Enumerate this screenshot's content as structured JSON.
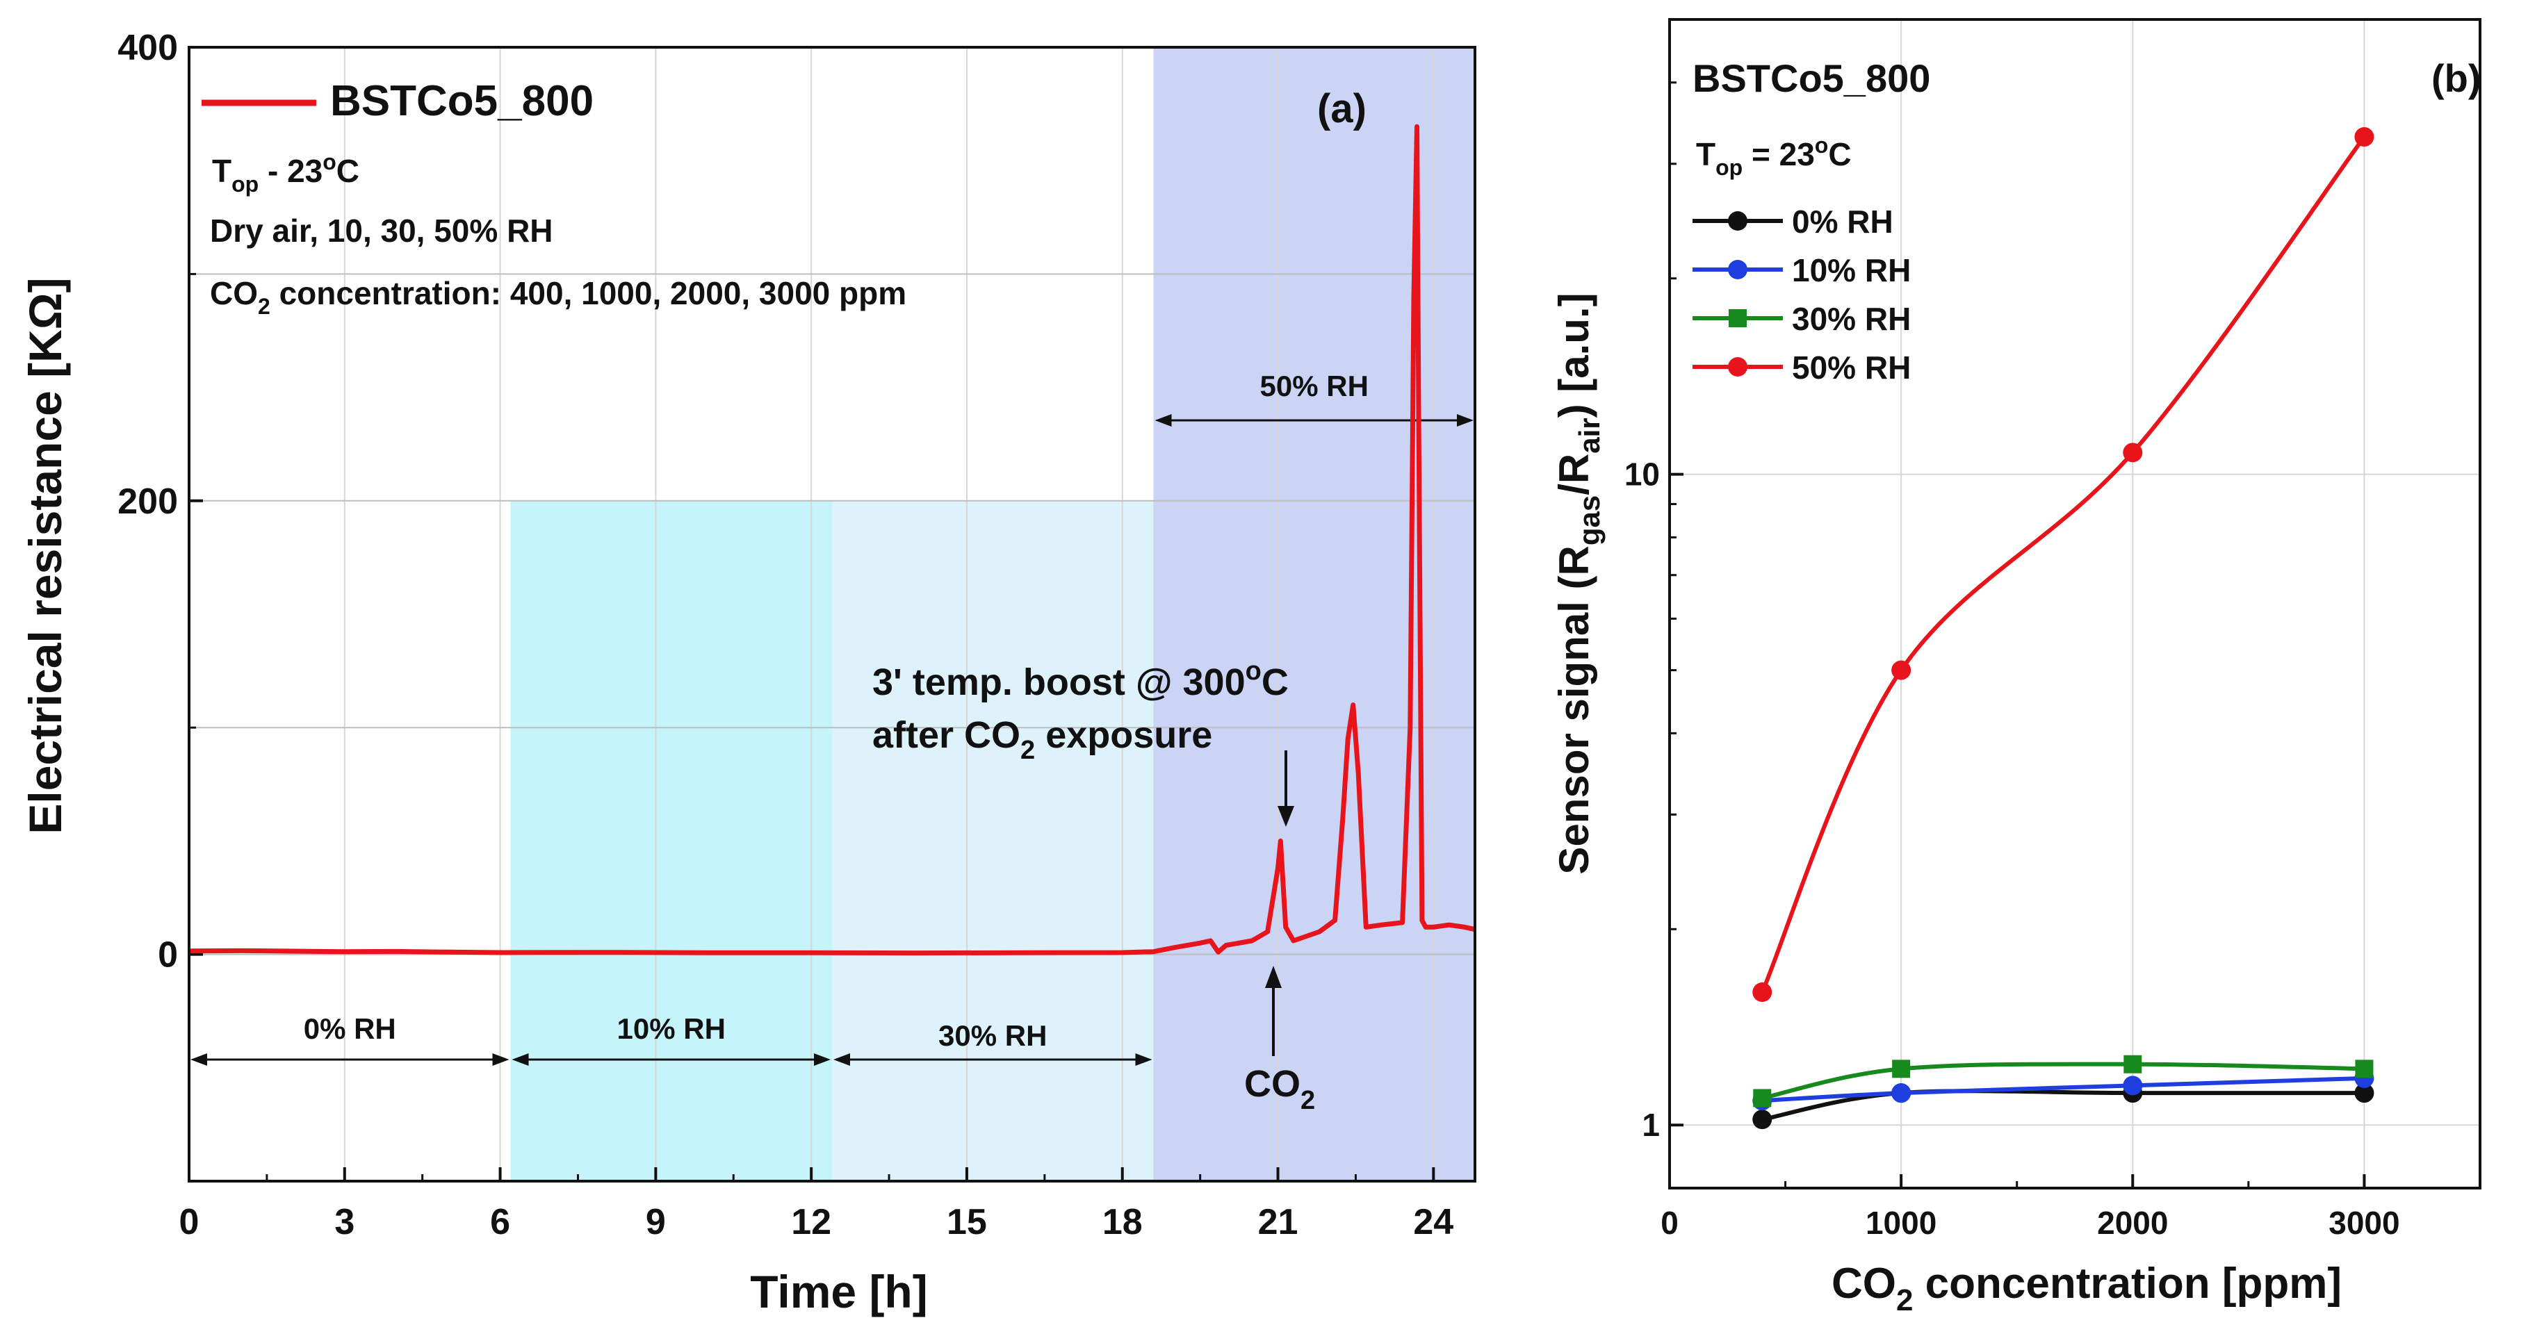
{
  "colors": {
    "red": "#e8141c",
    "black": "#111111",
    "blue": "#1f3ee0",
    "green": "#168a1c",
    "band_0": "#ffffff",
    "band_10": "#bff4fa",
    "band_30": "#d9f1fb",
    "band_50": "#c6cff5",
    "grid": "#d6d6d6"
  },
  "chart_data": [
    {
      "id": "a",
      "type": "line",
      "panel_label": "(a)",
      "xlabel": "Time [h]",
      "ylabel": "Electrical resistance [KΩ]",
      "xlim": [
        0,
        24.8
      ],
      "ylim": [
        -100,
        400
      ],
      "x_ticks": [
        0,
        3,
        6,
        9,
        12,
        15,
        18,
        21,
        24
      ],
      "x_tick_labels": [
        "0",
        "3",
        "6",
        "9",
        "12",
        "15",
        "18",
        "21",
        "24"
      ],
      "y_ticks": [
        0,
        200,
        400
      ],
      "y_tick_labels": [
        "0",
        "200",
        "400"
      ],
      "grid": true,
      "legend": {
        "position": "top-left",
        "label": "BSTCo5_800"
      },
      "info_lines": {
        "top_main": "T",
        "top_sub": "op",
        "top_rest": " - 23",
        "top_sup": "o",
        "top_unit": "C",
        "gases": "Dry air, 10, 30, 50% RH",
        "co2_main": "CO",
        "co2_sub": "2",
        "co2_rest": " concentration: 400, 1000, 2000, 3000 ppm"
      },
      "bands": [
        {
          "label": "0% RH",
          "x_start": 0,
          "x_end": 6.2,
          "y_top": 400
        },
        {
          "label": "10% RH",
          "x_start": 6.2,
          "x_end": 12.4,
          "y_top": 200
        },
        {
          "label": "30% RH",
          "x_start": 12.4,
          "x_end": 18.6,
          "y_top": 200
        },
        {
          "label": "50% RH",
          "x_start": 18.6,
          "x_end": 24.8,
          "y_top": 400
        }
      ],
      "annotations": {
        "boost_line1_a": "3' temp. boost @ 300",
        "boost_line1_sup": "o",
        "boost_line1_b": "C",
        "boost_line2_a": "after CO",
        "boost_line2_sub": "2",
        "boost_line2_b": " exposure",
        "co2_main": "CO",
        "co2_sub": "2"
      },
      "series": [
        {
          "name": "BSTCo5_800",
          "x": [
            0,
            1,
            2,
            3,
            4,
            5,
            6,
            8,
            10,
            12,
            14,
            16,
            18,
            18.6,
            19,
            19.5,
            19.7,
            19.85,
            20,
            20.5,
            20.8,
            21,
            21.05,
            21.15,
            21.3,
            21.8,
            22.1,
            22.25,
            22.35,
            22.45,
            22.55,
            22.7,
            23,
            23.4,
            23.55,
            23.62,
            23.68,
            23.72,
            23.78,
            23.85,
            24,
            24.3,
            24.6,
            24.8
          ],
          "y": [
            1.5,
            1.6,
            1.4,
            1.2,
            1.3,
            1.0,
            0.8,
            0.9,
            0.7,
            0.7,
            0.6,
            0.7,
            0.8,
            1.2,
            3,
            5,
            6,
            1,
            4,
            6,
            10,
            38,
            50,
            12,
            6,
            10,
            15,
            60,
            95,
            110,
            80,
            12,
            13,
            14,
            100,
            290,
            365,
            220,
            15,
            12,
            12,
            13,
            12,
            11
          ]
        }
      ]
    },
    {
      "id": "b",
      "type": "line",
      "panel_label": "(b)",
      "title": "BSTCo5_800",
      "xlabel_main": "CO",
      "xlabel_sub": "2",
      "xlabel_rest": " concentration [ppm]",
      "ylabel_a": "Sensor signal (R",
      "ylabel_sub1": "gas",
      "ylabel_b": "/R",
      "ylabel_sub2": "air",
      "ylabel_c": ") [a.u.]",
      "y_scale": "log",
      "xlim": [
        0,
        3500
      ],
      "ylim": [
        0.8,
        50
      ],
      "x_ticks": [
        0,
        1000,
        2000,
        3000
      ],
      "x_tick_labels": [
        "0",
        "1000",
        "2000",
        "3000"
      ],
      "y_ticks": [
        1,
        10
      ],
      "y_tick_labels": [
        "1",
        "10"
      ],
      "grid": true,
      "legend_position": "top-left",
      "top_note": {
        "main": "T",
        "sub": "op",
        "rest": " = 23",
        "sup": "o",
        "unit": "C"
      },
      "x": [
        400,
        1000,
        2000,
        3000
      ],
      "series": [
        {
          "name": "0% RH",
          "marker": "circle",
          "color_key": "black",
          "values": [
            1.02,
            1.12,
            1.12,
            1.12
          ]
        },
        {
          "name": "10% RH",
          "marker": "circle",
          "color_key": "blue",
          "values": [
            1.09,
            1.12,
            1.15,
            1.18
          ]
        },
        {
          "name": "30% RH",
          "marker": "square",
          "color_key": "green",
          "values": [
            1.1,
            1.22,
            1.24,
            1.22
          ]
        },
        {
          "name": "50% RH",
          "marker": "circle",
          "color_key": "red",
          "values": [
            1.6,
            5.0,
            10.8,
            33.0
          ]
        }
      ]
    }
  ]
}
